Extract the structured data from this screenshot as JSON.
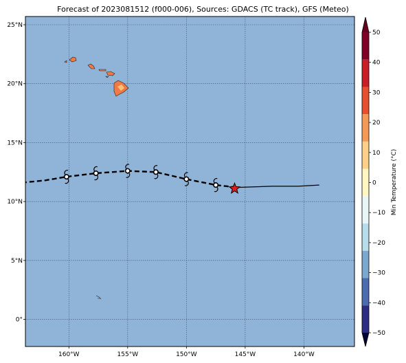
{
  "title": "Forecast of 2023081512 (f000-006), Sources: GDACS (TC track), GFS (Meteo)",
  "map": {
    "lon_range": [
      -164,
      -144
    ],
    "lat_range": [
      -2.3,
      25.7
    ],
    "ocean_color": "#90b3d8",
    "land_color": "#f07a45",
    "land_high_color": "#f9c07a",
    "grid": true
  },
  "lat_ticks": [
    {
      "value": 25,
      "label": "25°N"
    },
    {
      "value": 20,
      "label": "20°N"
    },
    {
      "value": 15,
      "label": "15°N"
    },
    {
      "value": 10,
      "label": "10°N"
    },
    {
      "value": 5,
      "label": "5°N"
    },
    {
      "value": 0,
      "label": "0°"
    }
  ],
  "lon_ticks": [
    {
      "value": -160,
      "label": "160°W"
    },
    {
      "value": -155,
      "label": "155°W"
    },
    {
      "value": -150,
      "label": "150°W"
    },
    {
      "value": -145,
      "label": "145°W"
    },
    {
      "value": -140,
      "label": "140°W"
    }
  ],
  "track_forecast": [
    [
      -164.0,
      11.6
    ],
    [
      -162.0,
      11.8
    ],
    [
      -160.2,
      12.1
    ],
    [
      -157.7,
      12.4
    ],
    [
      -155.0,
      12.6
    ],
    [
      -152.6,
      12.5
    ],
    [
      -150.0,
      11.9
    ],
    [
      -147.5,
      11.4
    ],
    [
      -145.7,
      11.2
    ]
  ],
  "track_observed": [
    [
      -145.7,
      11.2
    ],
    [
      -142.7,
      11.3
    ],
    [
      -140.5,
      11.3
    ],
    [
      -138.7,
      11.4
    ]
  ],
  "storm_markers": [
    [
      -160.2,
      12.1
    ],
    [
      -157.7,
      12.4
    ],
    [
      -155.0,
      12.6
    ],
    [
      -152.6,
      12.5
    ],
    [
      -150.0,
      11.9
    ],
    [
      -147.5,
      11.4
    ]
  ],
  "current_position": {
    "lon": -145.9,
    "lat": 11.1,
    "color": "#e31a1c"
  },
  "colorbar": {
    "label": "Min Temperature (°C)",
    "ticks": [
      50,
      40,
      30,
      20,
      10,
      0,
      -10,
      -20,
      -30,
      -40,
      -50
    ],
    "colors": [
      "#800026",
      "#c81f27",
      "#e4512f",
      "#f49a57",
      "#fdd089",
      "#fff6c2",
      "#e9f6f8",
      "#b7dcea",
      "#7ba8cf",
      "#4b6db0",
      "#2c2c83"
    ],
    "extend_top": "#67001f",
    "extend_bottom": "#020433"
  }
}
